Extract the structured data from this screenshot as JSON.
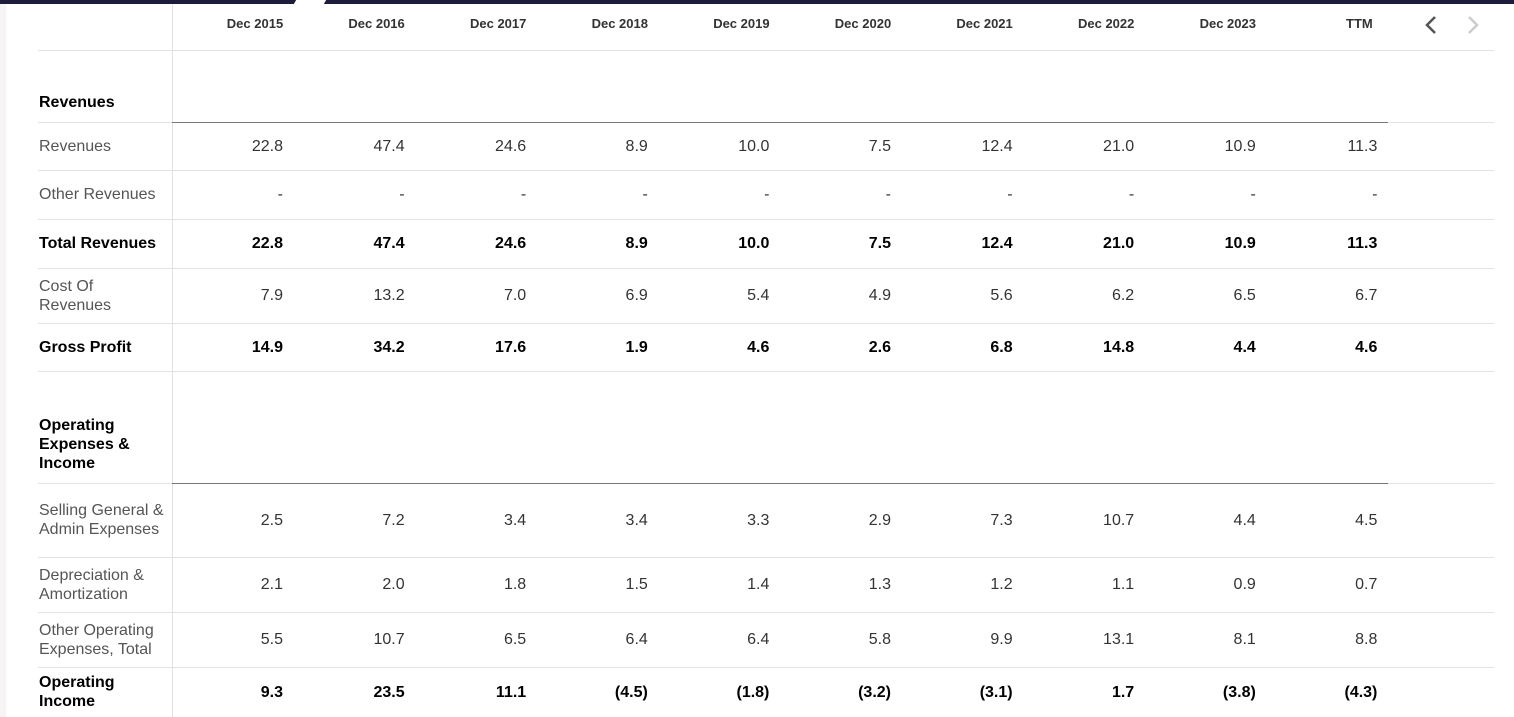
{
  "table": {
    "columns": [
      "Dec 2015",
      "Dec 2016",
      "Dec 2017",
      "Dec 2018",
      "Dec 2019",
      "Dec 2020",
      "Dec 2021",
      "Dec 2022",
      "Dec 2023",
      "TTM"
    ],
    "sections": [
      {
        "title": "Revenues",
        "rows": [
          {
            "label": "Revenues",
            "bold": false,
            "values": [
              "22.8",
              "47.4",
              "24.6",
              "8.9",
              "10.0",
              "7.5",
              "12.4",
              "21.0",
              "10.9",
              "11.3"
            ]
          },
          {
            "label": "Other Revenues",
            "bold": false,
            "values": [
              "-",
              "-",
              "-",
              "-",
              "-",
              "-",
              "-",
              "-",
              "-",
              "-"
            ]
          },
          {
            "label": "Total Revenues",
            "bold": true,
            "values": [
              "22.8",
              "47.4",
              "24.6",
              "8.9",
              "10.0",
              "7.5",
              "12.4",
              "21.0",
              "10.9",
              "11.3"
            ]
          },
          {
            "label": "Cost Of Revenues",
            "bold": false,
            "values": [
              "7.9",
              "13.2",
              "7.0",
              "6.9",
              "5.4",
              "4.9",
              "5.6",
              "6.2",
              "6.5",
              "6.7"
            ]
          },
          {
            "label": "Gross Profit",
            "bold": true,
            "values": [
              "14.9",
              "34.2",
              "17.6",
              "1.9",
              "4.6",
              "2.6",
              "6.8",
              "14.8",
              "4.4",
              "4.6"
            ]
          }
        ]
      },
      {
        "title": "Operating Expenses & Income",
        "rows": [
          {
            "label": "Selling General & Admin Expenses",
            "bold": false,
            "values": [
              "2.5",
              "7.2",
              "3.4",
              "3.4",
              "3.3",
              "2.9",
              "7.3",
              "10.7",
              "4.4",
              "4.5"
            ]
          },
          {
            "label": "Depreciation & Amortization",
            "bold": false,
            "values": [
              "2.1",
              "2.0",
              "1.8",
              "1.5",
              "1.4",
              "1.3",
              "1.2",
              "1.1",
              "0.9",
              "0.7"
            ]
          },
          {
            "label": "Other Operating Expenses, Total",
            "bold": false,
            "values": [
              "5.5",
              "10.7",
              "6.5",
              "6.4",
              "6.4",
              "5.8",
              "9.9",
              "13.1",
              "8.1",
              "8.8"
            ]
          },
          {
            "label": "Operating Income",
            "bold": true,
            "values": [
              "9.3",
              "23.5",
              "11.1",
              "(4.5)",
              "(1.8)",
              "(3.2)",
              "(3.1)",
              "1.7",
              "(3.8)",
              "(4.3)"
            ]
          }
        ]
      }
    ]
  }
}
